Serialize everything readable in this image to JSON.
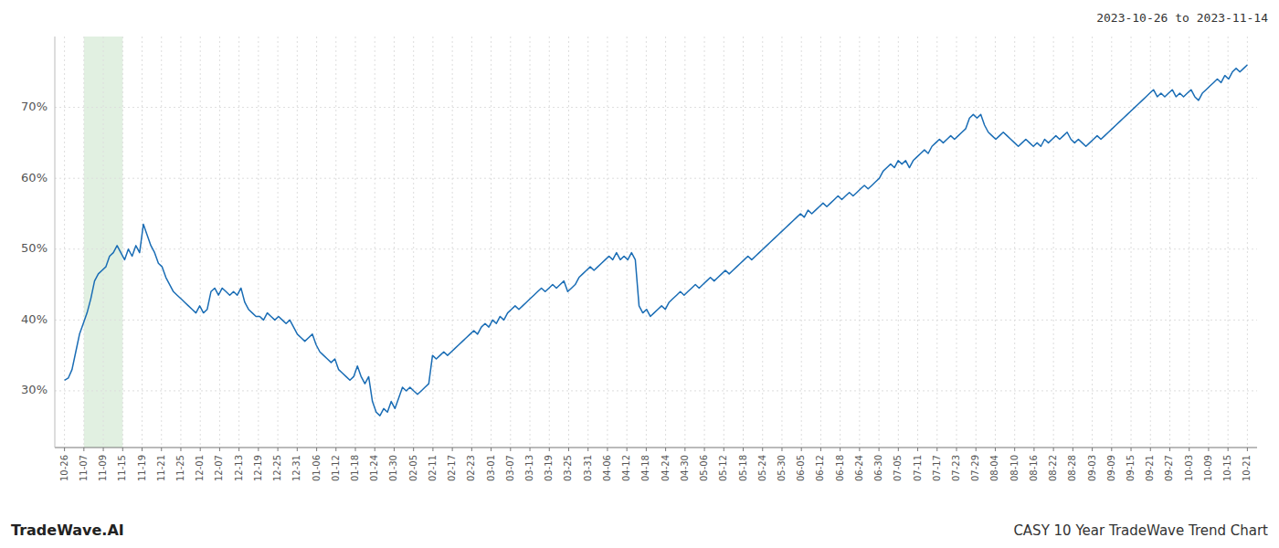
{
  "chart_data": {
    "type": "line",
    "title": "2023-10-26 to 2023-11-14",
    "annotations": [
      "TradeWave.AI",
      "CASY 10 Year TradeWave Trend Chart"
    ],
    "color": "#1a6db5",
    "grid": true,
    "highlight": {
      "from": 5.16393,
      "to": 15.4918,
      "color": "#d4ead4"
    },
    "ylim": [
      22,
      80
    ],
    "yticks": [
      {
        "value": 30,
        "label": "30%"
      },
      {
        "value": 40,
        "label": "40%"
      },
      {
        "value": 50,
        "label": "50%"
      },
      {
        "value": 60,
        "label": "60%"
      },
      {
        "value": 70,
        "label": "70%"
      }
    ],
    "xlim": [
      -2.58197,
      317.58197
    ],
    "xticks": [
      {
        "value": 0,
        "label": "10-26"
      },
      {
        "value": 5.16393,
        "label": "11-07"
      },
      {
        "value": 10.32787,
        "label": "11-09"
      },
      {
        "value": 15.4918,
        "label": "11-15"
      },
      {
        "value": 20.65574,
        "label": "11-19"
      },
      {
        "value": 25.81967,
        "label": "11-21"
      },
      {
        "value": 30.98361,
        "label": "11-25"
      },
      {
        "value": 36.14754,
        "label": "12-01"
      },
      {
        "value": 41.31148,
        "label": "12-07"
      },
      {
        "value": 46.47541,
        "label": "12-13"
      },
      {
        "value": 51.63934,
        "label": "12-19"
      },
      {
        "value": 56.80328,
        "label": "12-25"
      },
      {
        "value": 61.96721,
        "label": "12-31"
      },
      {
        "value": 67.14754,
        "label": "01-06"
      },
      {
        "value": 72.29508,
        "label": "01-12"
      },
      {
        "value": 77.45902,
        "label": "01-18"
      },
      {
        "value": 82.62295,
        "label": "01-24"
      },
      {
        "value": 87.78689,
        "label": "01-30"
      },
      {
        "value": 92.95082,
        "label": "02-05"
      },
      {
        "value": 98.11475,
        "label": "02-11"
      },
      {
        "value": 103.27869,
        "label": "02-17"
      },
      {
        "value": 108.44262,
        "label": "02-23"
      },
      {
        "value": 113.60656,
        "label": "03-01"
      },
      {
        "value": 118.77049,
        "label": "03-07"
      },
      {
        "value": 123.93443,
        "label": "03-13"
      },
      {
        "value": 129.09836,
        "label": "03-19"
      },
      {
        "value": 134.2623,
        "label": "03-25"
      },
      {
        "value": 139.42623,
        "label": "03-31"
      },
      {
        "value": 144.59016,
        "label": "04-06"
      },
      {
        "value": 149.7541,
        "label": "04-12"
      },
      {
        "value": 154.91803,
        "label": "04-18"
      },
      {
        "value": 160.08197,
        "label": "04-24"
      },
      {
        "value": 165.2459,
        "label": "04-30"
      },
      {
        "value": 170.40984,
        "label": "05-06"
      },
      {
        "value": 175.57377,
        "label": "05-12"
      },
      {
        "value": 180.7377,
        "label": "05-18"
      },
      {
        "value": 185.90164,
        "label": "05-24"
      },
      {
        "value": 191.06557,
        "label": "05-30"
      },
      {
        "value": 196.22951,
        "label": "06-05"
      },
      {
        "value": 201.39344,
        "label": "06-12"
      },
      {
        "value": 206.55738,
        "label": "06-18"
      },
      {
        "value": 211.72131,
        "label": "06-24"
      },
      {
        "value": 216.88525,
        "label": "06-30"
      },
      {
        "value": 222.04918,
        "label": "07-05"
      },
      {
        "value": 227.21311,
        "label": "07-11"
      },
      {
        "value": 232.37705,
        "label": "07-17"
      },
      {
        "value": 237.54098,
        "label": "07-23"
      },
      {
        "value": 242.70492,
        "label": "07-29"
      },
      {
        "value": 247.86885,
        "label": "08-04"
      },
      {
        "value": 253.03279,
        "label": "08-10"
      },
      {
        "value": 258.19672,
        "label": "08-16"
      },
      {
        "value": 263.36066,
        "label": "08-22"
      },
      {
        "value": 268.52459,
        "label": "08-28"
      },
      {
        "value": 273.68852,
        "label": "09-03"
      },
      {
        "value": 278.85246,
        "label": "09-09"
      },
      {
        "value": 284.01639,
        "label": "09-15"
      },
      {
        "value": 289.18033,
        "label": "09-21"
      },
      {
        "value": 294.34426,
        "label": "09-27"
      },
      {
        "value": 299.5082,
        "label": "10-03"
      },
      {
        "value": 304.67213,
        "label": "10-09"
      },
      {
        "value": 309.83607,
        "label": "10-15"
      },
      {
        "value": 315,
        "label": "10-21"
      }
    ],
    "values": [
      31.5,
      31.8,
      33.0,
      35.5,
      38.0,
      39.5,
      41.0,
      43.0,
      45.5,
      46.5,
      47.0,
      47.5,
      49.0,
      49.5,
      50.5,
      49.5,
      48.5,
      50.0,
      49.0,
      50.5,
      49.5,
      53.5,
      52.0,
      50.5,
      49.5,
      48.0,
      47.5,
      46.0,
      45.0,
      44.0,
      43.5,
      43.0,
      42.5,
      42.0,
      41.5,
      41.0,
      42.0,
      41.0,
      41.5,
      44.0,
      44.5,
      43.5,
      44.5,
      44.0,
      43.5,
      44.0,
      43.5,
      44.5,
      42.5,
      41.5,
      41.0,
      40.5,
      40.5,
      40.0,
      41.0,
      40.5,
      40.0,
      40.5,
      40.0,
      39.5,
      40.0,
      39.0,
      38.0,
      37.5,
      37.0,
      37.5,
      38.0,
      36.5,
      35.5,
      35.0,
      34.5,
      34.0,
      34.5,
      33.0,
      32.5,
      32.0,
      31.5,
      32.0,
      33.5,
      32.0,
      31.0,
      32.0,
      28.5,
      27.0,
      26.5,
      27.5,
      27.0,
      28.5,
      27.5,
      29.0,
      30.5,
      30.0,
      30.5,
      30.0,
      29.5,
      30.0,
      30.5,
      31.0,
      35.0,
      34.5,
      35.0,
      35.5,
      35.0,
      35.5,
      36.0,
      36.5,
      37.0,
      37.5,
      38.0,
      38.5,
      38.0,
      39.0,
      39.5,
      39.0,
      40.0,
      39.5,
      40.5,
      40.0,
      41.0,
      41.5,
      42.0,
      41.5,
      42.0,
      42.5,
      43.0,
      43.5,
      44.0,
      44.5,
      44.0,
      44.5,
      45.0,
      44.5,
      45.0,
      45.5,
      44.0,
      44.5,
      45.0,
      46.0,
      46.5,
      47.0,
      47.5,
      47.0,
      47.5,
      48.0,
      48.5,
      49.0,
      48.5,
      49.5,
      48.5,
      49.0,
      48.5,
      49.5,
      48.5,
      42.0,
      41.0,
      41.5,
      40.5,
      41.0,
      41.5,
      42.0,
      41.5,
      42.5,
      43.0,
      43.5,
      44.0,
      43.5,
      44.0,
      44.5,
      45.0,
      44.5,
      45.0,
      45.5,
      46.0,
      45.5,
      46.0,
      46.5,
      47.0,
      46.5,
      47.0,
      47.5,
      48.0,
      48.5,
      49.0,
      48.5,
      49.0,
      49.5,
      50.0,
      50.5,
      51.0,
      51.5,
      52.0,
      52.5,
      53.0,
      53.5,
      54.0,
      54.5,
      55.0,
      54.5,
      55.5,
      55.0,
      55.5,
      56.0,
      56.5,
      56.0,
      56.5,
      57.0,
      57.5,
      57.0,
      57.5,
      58.0,
      57.5,
      58.0,
      58.5,
      59.0,
      58.5,
      59.0,
      59.5,
      60.0,
      61.0,
      61.5,
      62.0,
      61.5,
      62.5,
      62.0,
      62.5,
      61.5,
      62.5,
      63.0,
      63.5,
      64.0,
      63.5,
      64.5,
      65.0,
      65.5,
      65.0,
      65.5,
      66.0,
      65.5,
      66.0,
      66.5,
      67.0,
      68.5,
      69.0,
      68.5,
      69.0,
      67.5,
      66.5,
      66.0,
      65.5,
      66.0,
      66.5,
      66.0,
      65.5,
      65.0,
      64.5,
      65.0,
      65.5,
      65.0,
      64.5,
      65.0,
      64.5,
      65.5,
      65.0,
      65.5,
      66.0,
      65.5,
      66.0,
      66.5,
      65.5,
      65.0,
      65.5,
      65.0,
      64.5,
      65.0,
      65.5,
      66.0,
      65.5,
      66.0,
      66.5,
      67.0,
      67.5,
      68.0,
      68.5,
      69.0,
      69.5,
      70.0,
      70.5,
      71.0,
      71.5,
      72.0,
      72.5,
      71.5,
      72.0,
      71.5,
      72.0,
      72.5,
      71.5,
      72.0,
      71.5,
      72.0,
      72.5,
      71.5,
      71.0,
      72.0,
      72.5,
      73.0,
      73.5,
      74.0,
      73.5,
      74.5,
      74.0,
      75.0,
      75.5,
      75.0,
      75.5,
      76.0
    ]
  }
}
